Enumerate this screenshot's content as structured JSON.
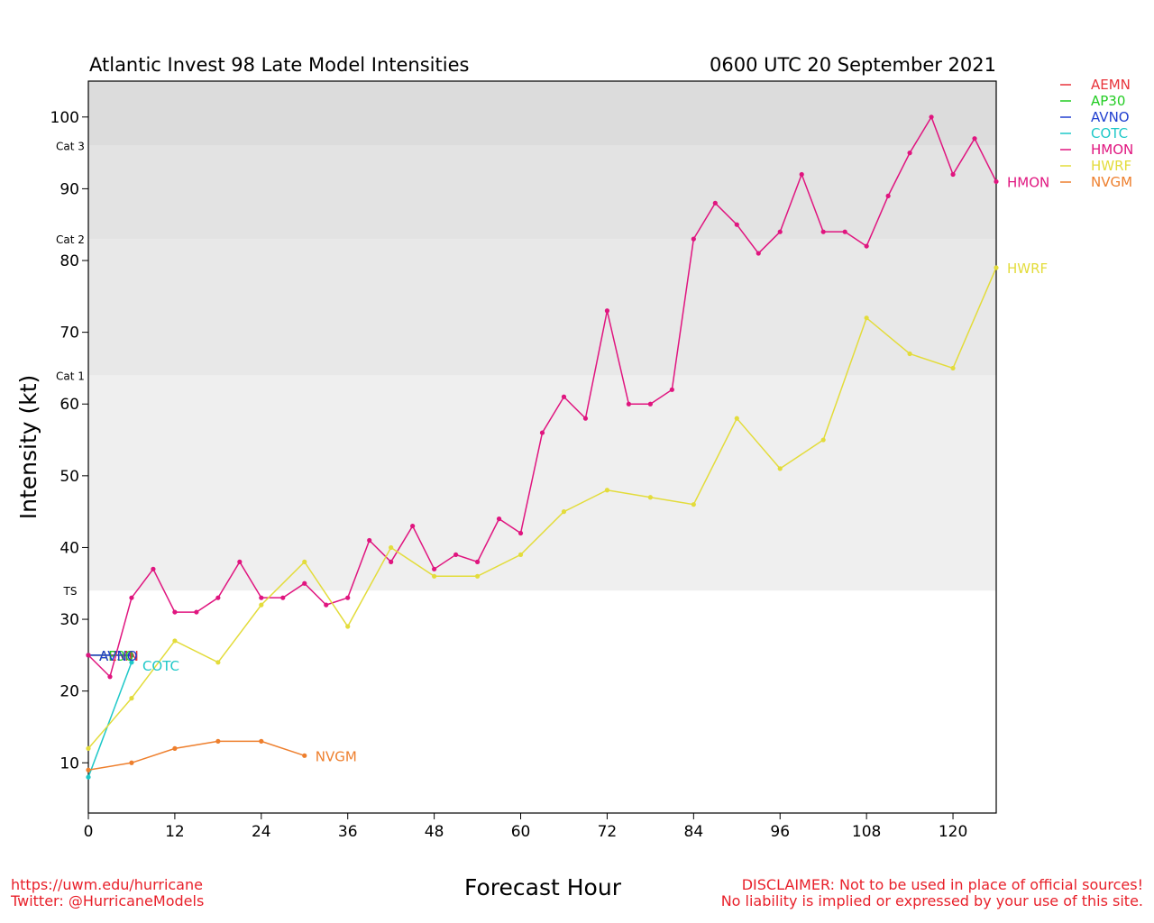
{
  "chart_data": {
    "type": "line",
    "title": "Atlantic Invest 98 Late Model Intensities",
    "subtitle": "0600 UTC 20 September 2021",
    "xlabel": "Forecast Hour",
    "ylabel": "Intensity (kt)",
    "xlim": [
      0,
      126
    ],
    "ylim": [
      3,
      105
    ],
    "xticks": [
      0,
      12,
      24,
      36,
      48,
      60,
      72,
      84,
      96,
      108,
      120
    ],
    "yticks": [
      10,
      20,
      30,
      40,
      50,
      60,
      70,
      80,
      90,
      100
    ],
    "grid": false,
    "legend_position": "right, outside plot",
    "category_bands": [
      {
        "label": "TS",
        "from": 34,
        "to": 64,
        "color": "#efefef"
      },
      {
        "label": "Cat 1",
        "from": 64,
        "to": 83,
        "color": "#e8e8e8"
      },
      {
        "label": "Cat 2",
        "from": 83,
        "to": 96,
        "color": "#e3e3e3"
      },
      {
        "label": "Cat 3",
        "from": 96,
        "to": 105,
        "color": "#dcdcdc"
      }
    ],
    "series": [
      {
        "name": "AEMN",
        "color": "#e8333a",
        "x": [
          0,
          6
        ],
        "y": [
          25,
          25
        ],
        "end_label": "AEMN"
      },
      {
        "name": "AP30",
        "color": "#22cc22",
        "x": [
          0,
          6
        ],
        "y": [
          25,
          25
        ],
        "end_label": "AP30"
      },
      {
        "name": "AVNO",
        "color": "#2240d0",
        "x": [
          0,
          6
        ],
        "y": [
          25,
          25
        ],
        "end_label": "AVNO"
      },
      {
        "name": "COTC",
        "color": "#1ec8c8",
        "x": [
          0,
          6
        ],
        "y": [
          8,
          24
        ],
        "end_label": "COTC"
      },
      {
        "name": "HMON",
        "color": "#e0157f",
        "x": [
          0,
          3,
          6,
          9,
          12,
          15,
          18,
          21,
          24,
          27,
          30,
          33,
          36,
          39,
          42,
          45,
          48,
          51,
          54,
          57,
          60,
          63,
          66,
          69,
          72,
          75,
          78,
          81,
          84,
          87,
          90,
          93,
          96,
          99,
          102,
          105,
          108,
          111,
          114,
          117,
          120,
          123,
          126
        ],
        "y": [
          25,
          22,
          33,
          37,
          31,
          31,
          33,
          38,
          33,
          33,
          35,
          32,
          33,
          41,
          38,
          43,
          37,
          39,
          38,
          44,
          42,
          56,
          61,
          58,
          73,
          60,
          60,
          62,
          83,
          88,
          85,
          81,
          84,
          92,
          84,
          84,
          82,
          89,
          95,
          100,
          92,
          97,
          91
        ],
        "end_label": "HMON"
      },
      {
        "name": "HWRF",
        "color": "#e3dc3b",
        "x": [
          0,
          6,
          12,
          18,
          24,
          30,
          36,
          42,
          48,
          54,
          60,
          66,
          72,
          78,
          84,
          90,
          96,
          102,
          108,
          114,
          120,
          126
        ],
        "y": [
          12,
          19,
          27,
          24,
          32,
          38,
          29,
          40,
          36,
          36,
          39,
          45,
          48,
          47,
          46,
          58,
          51,
          55,
          72,
          67,
          65,
          79
        ],
        "end_label": "HWRF"
      },
      {
        "name": "NVGM",
        "color": "#ee7f2d",
        "x": [
          0,
          6,
          12,
          18,
          24,
          30
        ],
        "y": [
          9,
          10,
          12,
          13,
          13,
          11
        ],
        "end_label": "NVGM"
      }
    ]
  },
  "footer": {
    "left_line1": "https://uwm.edu/hurricane",
    "left_line2": "Twitter: @HurricaneModels",
    "right_line1": "DISCLAIMER: Not to be used in place of official sources!",
    "right_line2": "No liability is implied or expressed by your use of this site."
  }
}
